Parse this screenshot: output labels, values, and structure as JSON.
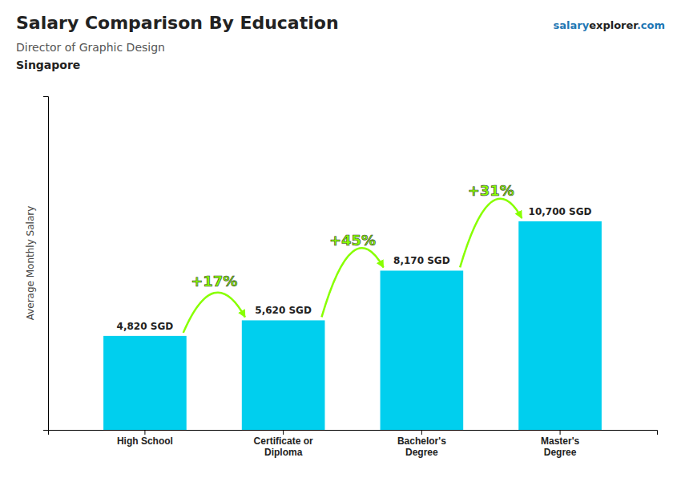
{
  "chart_data": {
    "type": "bar",
    "title": "Salary Comparison By Education",
    "subtitle": [
      "Director of Graphic Design",
      "Singapore"
    ],
    "ylabel": "Average Monthly Salary",
    "categories": [
      "High School",
      "Certificate or\nDiploma",
      "Bachelor's\nDegree",
      "Master's\nDegree"
    ],
    "values": [
      4820,
      5620,
      8170,
      10700
    ],
    "value_labels": [
      "4,820 SGD",
      "5,620 SGD",
      "8,170 SGD",
      "10,700 SGD"
    ],
    "data_labels": true,
    "color": "#00CFEE",
    "ylim": [
      0,
      17120
    ],
    "tick_labels": "x",
    "grid": false,
    "annotations": [
      {
        "text": [
          "salary",
          "explorer",
          ".com"
        ]
      },
      {
        "text": "+17%",
        "color": "#88FF00"
      },
      {
        "text": "+45%",
        "color": "#88FF00"
      },
      {
        "text": "+31%",
        "color": "#88FF00"
      }
    ]
  }
}
